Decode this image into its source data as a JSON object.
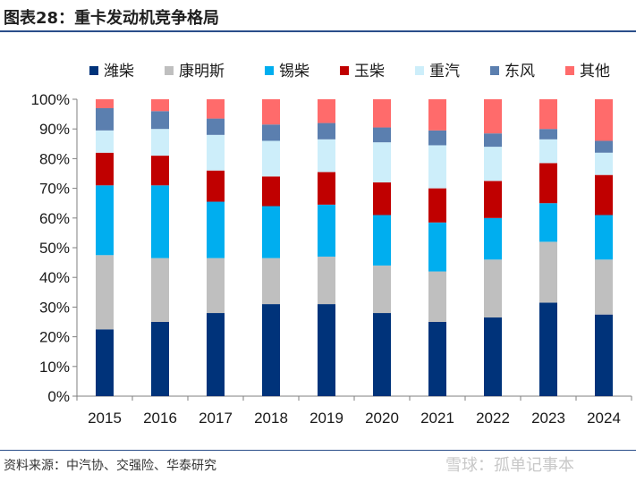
{
  "figure": {
    "label": "图表28：",
    "title": "重卡发动机竞争格局",
    "source": "资料来源：中汽协、交强险、华泰研究",
    "watermark": "雪球：孤单记事本"
  },
  "chart_data": {
    "type": "bar",
    "stacked": true,
    "categories": [
      "2015",
      "2016",
      "2017",
      "2018",
      "2019",
      "2020",
      "2021",
      "2022",
      "2023",
      "2024"
    ],
    "ylim": [
      0,
      100
    ],
    "yticks": [
      0,
      10,
      20,
      30,
      40,
      50,
      60,
      70,
      80,
      90,
      100
    ],
    "ytick_labels": [
      "0%",
      "10%",
      "20%",
      "30%",
      "40%",
      "50%",
      "60%",
      "70%",
      "80%",
      "90%",
      "100%"
    ],
    "legend_position": "top",
    "series": [
      {
        "name": "潍柴",
        "color": "#00337a",
        "values": [
          22.5,
          25,
          28,
          31,
          31,
          28,
          25,
          26.5,
          31.5,
          27.5
        ]
      },
      {
        "name": "康明斯",
        "color": "#bfbfbf",
        "values": [
          25,
          21.5,
          18.5,
          15.5,
          16,
          16,
          17,
          19.5,
          20.5,
          18.5
        ]
      },
      {
        "name": "锡柴",
        "color": "#00aeef",
        "values": [
          23.5,
          24.5,
          19,
          17.5,
          17.5,
          17,
          16.5,
          14,
          13,
          15
        ]
      },
      {
        "name": "玉柴",
        "color": "#c00000",
        "values": [
          11,
          10,
          10.5,
          10,
          11,
          11,
          11.5,
          12.5,
          13.5,
          13.5
        ]
      },
      {
        "name": "重汽",
        "color": "#cdeefa",
        "values": [
          7.5,
          9,
          12,
          12,
          11,
          13.5,
          14.5,
          11.5,
          8,
          7.5
        ]
      },
      {
        "name": "东风",
        "color": "#5b7faf",
        "values": [
          7.5,
          6,
          5.5,
          5.5,
          5.5,
          5,
          5,
          4.5,
          3.5,
          4
        ]
      },
      {
        "name": "其他",
        "color": "#ff6b6b",
        "values": [
          3,
          4,
          6.5,
          8.5,
          8,
          9.5,
          10.5,
          11.5,
          10,
          14
        ]
      }
    ]
  }
}
